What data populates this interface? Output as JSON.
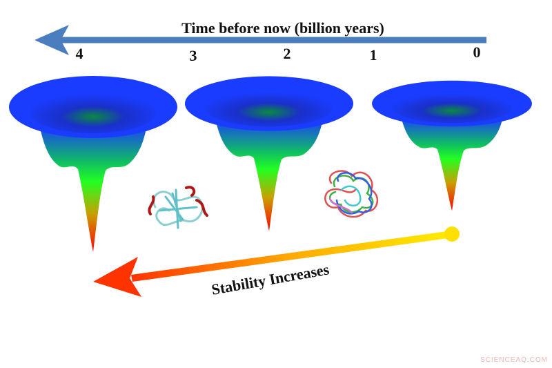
{
  "axis": {
    "title": "Time before now (billion years)",
    "labels": [
      "4",
      "3",
      "2",
      "1",
      "0"
    ]
  },
  "annotation": "Stability Increases",
  "watermark": "SCIENCEAQ.COM"
}
